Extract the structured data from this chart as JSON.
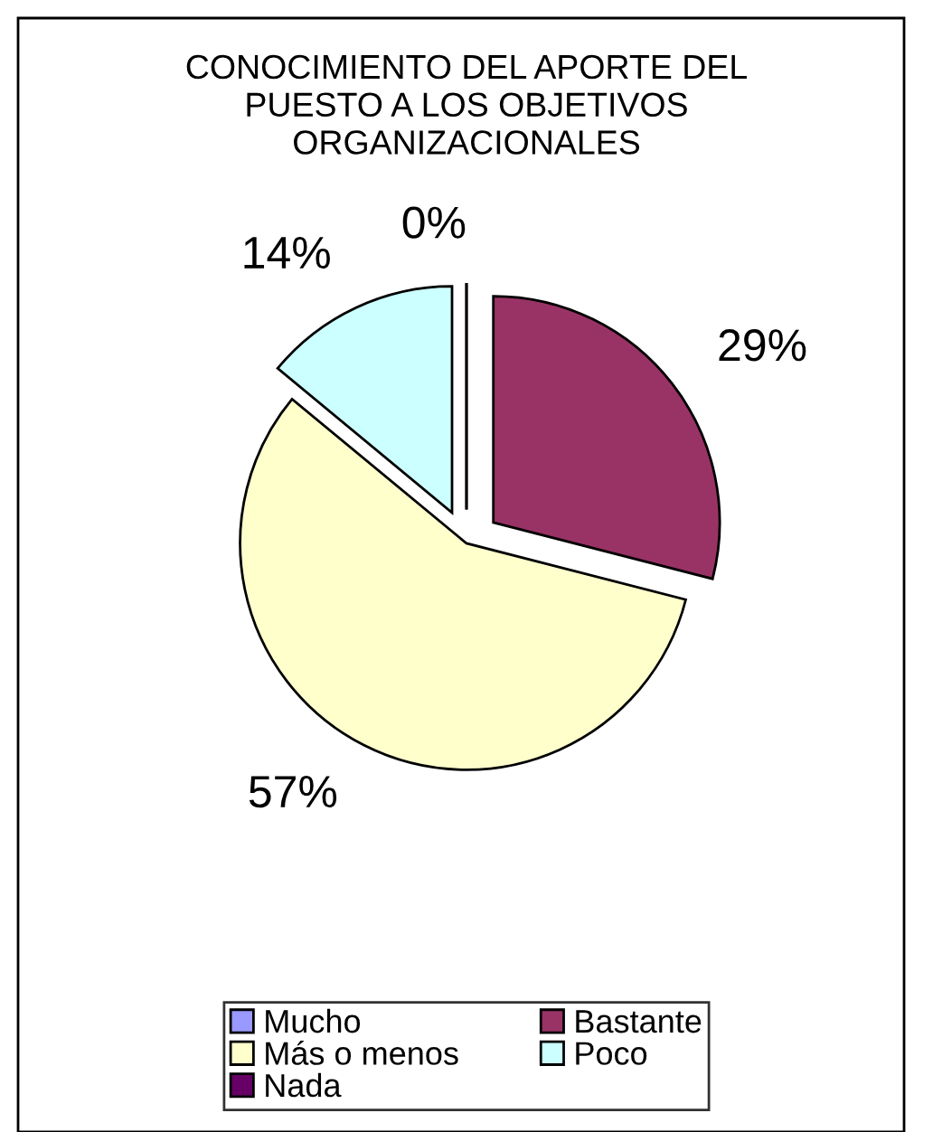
{
  "chart_data": {
    "type": "pie",
    "title": "CONOCIMIENTO DEL APORTE DEL\nPUESTO A LOS OBJETIVOS\nORGANIZACIONALES",
    "categories": [
      "Mucho",
      "Bastante",
      "Más o menos",
      "Poco",
      "Nada"
    ],
    "values": [
      0,
      29,
      57,
      14,
      0
    ],
    "value_labels": [
      "0%",
      "29%",
      "57%",
      "14%",
      null
    ],
    "colors": [
      "#9999ff",
      "#993366",
      "#ffffcc",
      "#ccffff",
      "#660066"
    ],
    "legend": "bottom"
  }
}
